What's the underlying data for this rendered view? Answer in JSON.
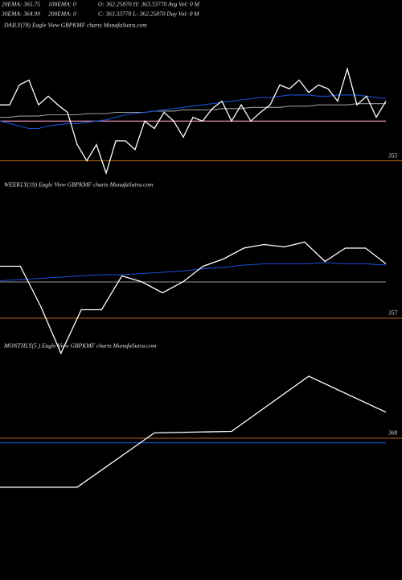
{
  "header": {
    "row1": [
      "20EMA: 365.75",
      "100EMA: 0",
      "O: 362.25870 H: 363.33770 Avg Vol: 0  M"
    ],
    "row2": [
      "30EMA: 364.99",
      "200EMA: 0",
      "C: 363.33770 L: 362.25870 Day Vol: 0  M"
    ]
  },
  "chart_data": [
    {
      "type": "line",
      "title": "DAILY(78) Eagle  View  GBPKMF charts MunafaSutra.com",
      "categories": [
        null,
        null,
        null,
        null,
        null,
        null,
        null,
        null,
        null,
        null,
        null,
        null,
        null,
        null,
        null,
        null,
        null,
        null,
        null,
        null,
        null,
        null,
        null,
        null,
        null,
        null,
        null,
        null,
        null,
        null,
        null,
        null,
        null,
        null,
        null,
        null,
        null,
        null,
        null,
        null,
        null
      ],
      "series": [
        {
          "color": "#ff9ec6",
          "values": [
            358.2,
            358.2,
            358.2,
            358.2,
            358.2,
            358.2,
            358.2,
            358.2,
            358.2,
            358.2,
            358.2,
            358.2,
            358.2,
            358.2,
            358.2,
            358.2,
            358.2,
            358.2,
            358.2,
            358.2,
            358.2,
            358.2,
            358.2,
            358.2,
            358.2,
            358.2,
            358.2,
            358.2,
            358.2,
            358.2,
            358.2,
            358.2,
            358.2,
            358.2,
            358.2,
            358.2,
            358.2,
            358.2,
            358.2,
            358.2,
            358.2
          ]
        },
        {
          "color": "#9a9a9a",
          "values": [
            358.5,
            358.5,
            358.6,
            358.6,
            358.6,
            358.7,
            358.7,
            358.7,
            358.7,
            358.8,
            358.8,
            358.8,
            358.9,
            358.9,
            358.9,
            358.9,
            359.0,
            359.0,
            359.0,
            359.1,
            359.1,
            359.1,
            359.1,
            359.2,
            359.2,
            359.2,
            359.3,
            359.3,
            359.3,
            359.3,
            359.4,
            359.4,
            359.4,
            359.5,
            359.5,
            359.5,
            359.5,
            359.6,
            359.6,
            359.6,
            359.6
          ]
        },
        {
          "color": "#1a4fd6",
          "values": [
            358.2,
            358.0,
            357.8,
            357.6,
            357.6,
            357.8,
            357.9,
            358.0,
            358.0,
            358.1,
            358.2,
            358.3,
            358.5,
            358.7,
            358.8,
            358.9,
            359.0,
            359.1,
            359.2,
            359.3,
            359.4,
            359.5,
            359.6,
            359.7,
            359.8,
            359.9,
            360.0,
            360.1,
            360.1,
            360.2,
            360.3,
            360.3,
            360.3,
            360.2,
            360.2,
            360.3,
            360.3,
            360.3,
            360.2,
            360.1,
            360.0
          ]
        },
        {
          "color": "#ffffff",
          "values": [
            359.5,
            359.5,
            361.1,
            361.5,
            359.5,
            360.2,
            359.5,
            358.9,
            356.3,
            355.0,
            356.3,
            354.0,
            356.6,
            356.6,
            355.9,
            358.2,
            357.6,
            358.9,
            358.2,
            356.9,
            358.5,
            358.2,
            359.2,
            359.8,
            358.2,
            359.5,
            358.2,
            358.9,
            359.5,
            361.1,
            360.8,
            361.5,
            360.5,
            361.1,
            360.8,
            359.8,
            362.4,
            359.5,
            360.2,
            358.5,
            359.8
          ]
        }
      ],
      "ylim": [
        354,
        366
      ],
      "yticks": [
        355
      ]
    },
    {
      "type": "line",
      "title": "WEEKLY(19) Eagle  View  GBPKMF charts MunafaSutra.com",
      "categories": [
        null,
        null,
        null,
        null,
        null,
        null,
        null,
        null,
        null,
        null,
        null,
        null,
        null,
        null,
        null,
        null,
        null,
        null,
        null,
        null
      ],
      "series": [
        {
          "color": "#9a9a9a",
          "values": [
            360.0,
            360.0,
            360.0,
            360.0,
            360.0,
            360.0,
            360.0,
            360.0,
            360.0,
            360.0,
            360.0,
            360.0,
            360.0,
            360.0,
            360.0,
            360.0,
            360.0,
            360.0,
            360.0,
            360.0
          ]
        },
        {
          "color": "#1a4fd6",
          "values": [
            360.1,
            360.2,
            360.3,
            360.4,
            360.5,
            360.6,
            360.6,
            360.7,
            360.8,
            360.9,
            361.1,
            361.2,
            361.4,
            361.5,
            361.5,
            361.5,
            361.6,
            361.5,
            361.5,
            361.4
          ]
        },
        {
          "color": "#ffffff",
          "values": [
            361.3,
            361.3,
            358.0,
            354.1,
            357.7,
            357.7,
            360.5,
            360.0,
            359.1,
            360.0,
            361.3,
            361.9,
            362.8,
            363.1,
            362.9,
            363.3,
            361.7,
            362.8,
            362.8,
            361.5
          ]
        }
      ],
      "ylim": [
        354,
        368
      ],
      "yticks": [
        357
      ]
    },
    {
      "type": "line",
      "title": "MONTHLY(5 )  Eagle  View  GBPKMF charts MunafaSutra.com",
      "categories": [
        null,
        null,
        null,
        null,
        null,
        null
      ],
      "series": [
        {
          "color": "#1a4fd6",
          "values": [
            367.4,
            367.4,
            367.4,
            367.4,
            367.4,
            367.4
          ]
        },
        {
          "color": "#ffffff",
          "values": [
            361.6,
            361.6,
            368.7,
            368.9,
            376.1,
            371.4
          ]
        }
      ],
      "ylim": [
        350,
        380
      ],
      "yticks": [
        368
      ]
    }
  ]
}
